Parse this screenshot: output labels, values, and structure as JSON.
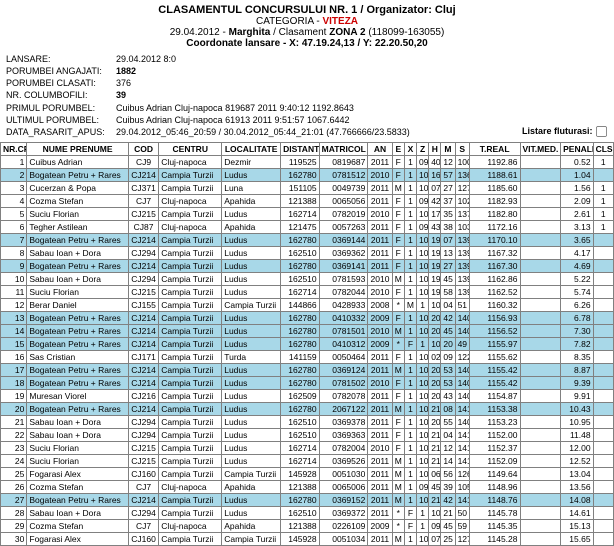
{
  "header": {
    "title_prefix": "CLASAMENTUL CONCURSULUI NR. 1 / Organizator: ",
    "organizer": "Cluj",
    "cat_prefix": "CATEGORIA - ",
    "category": "VITEZA",
    "date": "29.04.2012",
    "place": "Marghita",
    "zone_label": " / Clasament ",
    "zone": "ZONA 2",
    "zone_code": " (118099-163055)",
    "coord_label": "Coordonate lansare - X: 47.19.24,13 / Y: 22.20.50,20"
  },
  "meta": {
    "lansare_label": "LANSARE:",
    "lansare": "29.04.2012 8:0",
    "angajati_label": "PORUMBEI ANGAJATI:",
    "angajati": "1882",
    "clasati_label": "PORUMBEI CLASATI:",
    "clasati": "376",
    "columbofili_label": "NR. COLUMBOFILI:",
    "columbofili": "39",
    "primul_label": "PRIMUL PORUMBEL:",
    "primul": "Cuibus Adrian      Cluj-napoca      819687   2011   9:40:12   1192.8643",
    "ultimul_label": "ULTIMUL PORUMBEL:",
    "ultimul": "Cuibus Adrian      Cluj-napoca      61913    2011   9:51:57   1067.6442",
    "data_label": "DATA_RASARIT_APUS:",
    "data": "29.04.2012_05:46_20:59 / 30.04.2012_05:44_21:01 (47.766666/23.5833)",
    "listare_label": "Listare fluturasi:"
  },
  "columns": [
    "NR.CRT.",
    "NUME PRENUME",
    "COD",
    "CENTRU",
    "LOCALITATE",
    "DISTANTA",
    "MATRICOL",
    "AN",
    "E",
    "X",
    "Z",
    "H",
    "M",
    "S",
    "T.REAL",
    "VIT.MED.",
    "PENALIZ.",
    "CLS."
  ],
  "highlight_color": "#a8d8e8",
  "rows": [
    {
      "nr": 1,
      "nume": "Cuibus Adrian",
      "cod": "CJ9",
      "centru": "Cluj-napoca",
      "loc": "Dezmir",
      "dist": "119525",
      "mat": "0819687",
      "an": "2011",
      "e": "F",
      "x": "1",
      "z": "09",
      "h": "40",
      "m": "12",
      "s": "100.2000",
      "treal": "1192.86",
      "vit": "",
      "pen": "0.52",
      "cls": "1",
      "hl": false
    },
    {
      "nr": 2,
      "nume": "Bogatean Petru + Rares",
      "cod": "CJ214",
      "centru": "Campia Turzii",
      "loc": "Ludus",
      "dist": "162780",
      "mat": "0781512",
      "an": "2010",
      "e": "F",
      "x": "1",
      "z": "10",
      "h": "16",
      "m": "57",
      "s": "136.9500",
      "treal": "1188.61",
      "vit": "",
      "pen": "1.04",
      "cls": "",
      "hl": true
    },
    {
      "nr": 3,
      "nume": "Cucerzan & Popa",
      "cod": "CJ371",
      "centru": "Campia Turzii",
      "loc": "Luna",
      "dist": "151105",
      "mat": "0049739",
      "an": "2011",
      "e": "M",
      "x": "1",
      "z": "10",
      "h": "07",
      "m": "27",
      "s": "127.4500",
      "treal": "1185.60",
      "vit": "",
      "pen": "1.56",
      "cls": "1",
      "hl": false
    },
    {
      "nr": 4,
      "nume": "Cozma Stefan",
      "cod": "CJ7",
      "centru": "Cluj-napoca",
      "loc": "Apahida",
      "dist": "121388",
      "mat": "0065056",
      "an": "2011",
      "e": "F",
      "x": "1",
      "z": "09",
      "h": "42",
      "m": "37",
      "s": "102.6167",
      "treal": "1182.93",
      "vit": "",
      "pen": "2.09",
      "cls": "1",
      "hl": false
    },
    {
      "nr": 5,
      "nume": "Suciu Florian",
      "cod": "CJ215",
      "centru": "Campia Turzii",
      "loc": "Ludus",
      "dist": "162714",
      "mat": "0782019",
      "an": "2010",
      "e": "F",
      "x": "1",
      "z": "10",
      "h": "17",
      "m": "35",
      "s": "137.5833",
      "treal": "1182.80",
      "vit": "",
      "pen": "2.61",
      "cls": "1",
      "hl": false
    },
    {
      "nr": 6,
      "nume": "Tegher Astilean",
      "cod": "CJ87",
      "centru": "Cluj-napoca",
      "loc": "Apahida",
      "dist": "121475",
      "mat": "0057263",
      "an": "2011",
      "e": "F",
      "x": "1",
      "z": "09",
      "h": "43",
      "m": "38",
      "s": "103.6333",
      "treal": "1172.16",
      "vit": "",
      "pen": "3.13",
      "cls": "1",
      "hl": false
    },
    {
      "nr": 7,
      "nume": "Bogatean Petru + Rares",
      "cod": "CJ214",
      "centru": "Campia Turzii",
      "loc": "Ludus",
      "dist": "162780",
      "mat": "0369144",
      "an": "2011",
      "e": "F",
      "x": "1",
      "z": "10",
      "h": "19",
      "m": "07",
      "s": "139.1167",
      "treal": "1170.10",
      "vit": "",
      "pen": "3.65",
      "cls": "",
      "hl": true
    },
    {
      "nr": 8,
      "nume": "Sabau Ioan + Dora",
      "cod": "CJ294",
      "centru": "Campia Turzii",
      "loc": "Ludus",
      "dist": "162510",
      "mat": "0369362",
      "an": "2011",
      "e": "F",
      "x": "1",
      "z": "10",
      "h": "19",
      "m": "13",
      "s": "139.2167",
      "treal": "1167.32",
      "vit": "",
      "pen": "4.17",
      "cls": "",
      "hl": false
    },
    {
      "nr": 9,
      "nume": "Bogatean Petru + Rares",
      "cod": "CJ214",
      "centru": "Campia Turzii",
      "loc": "Ludus",
      "dist": "162780",
      "mat": "0369141",
      "an": "2011",
      "e": "F",
      "x": "1",
      "z": "10",
      "h": "19",
      "m": "27",
      "s": "139.4500",
      "treal": "1167.30",
      "vit": "",
      "pen": "4.69",
      "cls": "",
      "hl": true
    },
    {
      "nr": 10,
      "nume": "Sabau Ioan + Dora",
      "cod": "CJ294",
      "centru": "Campia Turzii",
      "loc": "Ludus",
      "dist": "162510",
      "mat": "0781593",
      "an": "2010",
      "e": "M",
      "x": "1",
      "z": "10",
      "h": "19",
      "m": "45",
      "s": "139.7500",
      "treal": "1162.86",
      "vit": "",
      "pen": "5.22",
      "cls": "",
      "hl": false
    },
    {
      "nr": 11,
      "nume": "Suciu Florian",
      "cod": "CJ215",
      "centru": "Campia Turzii",
      "loc": "Ludus",
      "dist": "162714",
      "mat": "0782044",
      "an": "2010",
      "e": "F",
      "x": "1",
      "z": "10",
      "h": "19",
      "m": "58",
      "s": "139.9667",
      "treal": "1162.52",
      "vit": "",
      "pen": "5.74",
      "cls": "",
      "hl": false
    },
    {
      "nr": 12,
      "nume": "Berar Daniel",
      "cod": "CJ155",
      "centru": "Campia Turzii",
      "loc": "Campia Turzii",
      "dist": "144866",
      "mat": "0428933",
      "an": "2008",
      "e": "*",
      "x": "M",
      "z": "1",
      "h": "10",
      "m": "04",
      "s": "51 124.8500",
      "treal": "1160.32",
      "vit": "",
      "pen": "6.26",
      "cls": "",
      "hl": false
    },
    {
      "nr": 13,
      "nume": "Bogatean Petru + Rares",
      "cod": "CJ214",
      "centru": "Campia Turzii",
      "loc": "Ludus",
      "dist": "162780",
      "mat": "0410332",
      "an": "2009",
      "e": "F",
      "x": "1",
      "z": "10",
      "h": "20",
      "m": "42",
      "s": "140.7000",
      "treal": "1156.93",
      "vit": "",
      "pen": "6.78",
      "cls": "",
      "hl": true
    },
    {
      "nr": 14,
      "nume": "Bogatean Petru + Rares",
      "cod": "CJ214",
      "centru": "Campia Turzii",
      "loc": "Ludus",
      "dist": "162780",
      "mat": "0781501",
      "an": "2010",
      "e": "M",
      "x": "1",
      "z": "10",
      "h": "20",
      "m": "45",
      "s": "140.7500",
      "treal": "1156.52",
      "vit": "",
      "pen": "7.30",
      "cls": "",
      "hl": true
    },
    {
      "nr": 15,
      "nume": "Bogatean Petru + Rares",
      "cod": "CJ214",
      "centru": "Campia Turzii",
      "loc": "Ludus",
      "dist": "162780",
      "mat": "0410312",
      "an": "2009",
      "e": "*",
      "x": "F",
      "z": "1",
      "h": "10",
      "m": "20",
      "s": "49 140.8167",
      "treal": "1155.97",
      "vit": "",
      "pen": "7.82",
      "cls": "",
      "hl": true
    },
    {
      "nr": 16,
      "nume": "Sas Cristian",
      "cod": "CJ171",
      "centru": "Campia Turzii",
      "loc": "Turda",
      "dist": "141159",
      "mat": "0050464",
      "an": "2011",
      "e": "F",
      "x": "1",
      "z": "10",
      "h": "02",
      "m": "09",
      "s": "122.1500",
      "treal": "1155.62",
      "vit": "",
      "pen": "8.35",
      "cls": "",
      "hl": false
    },
    {
      "nr": 17,
      "nume": "Bogatean Petru + Rares",
      "cod": "CJ214",
      "centru": "Campia Turzii",
      "loc": "Ludus",
      "dist": "162780",
      "mat": "0369124",
      "an": "2011",
      "e": "M",
      "x": "1",
      "z": "10",
      "h": "20",
      "m": "53",
      "s": "140.8833",
      "treal": "1155.42",
      "vit": "",
      "pen": "8.87",
      "cls": "",
      "hl": true
    },
    {
      "nr": 18,
      "nume": "Bogatean Petru + Rares",
      "cod": "CJ214",
      "centru": "Campia Turzii",
      "loc": "Ludus",
      "dist": "162780",
      "mat": "0781502",
      "an": "2010",
      "e": "F",
      "x": "1",
      "z": "10",
      "h": "20",
      "m": "53",
      "s": "140.8833",
      "treal": "1155.42",
      "vit": "",
      "pen": "9.39",
      "cls": "",
      "hl": true
    },
    {
      "nr": 19,
      "nume": "Muresan Viorel",
      "cod": "CJ216",
      "centru": "Campia Turzii",
      "loc": "Ludus",
      "dist": "162509",
      "mat": "0782078",
      "an": "2011",
      "e": "F",
      "x": "1",
      "z": "10",
      "h": "20",
      "m": "43",
      "s": "140.7167",
      "treal": "1154.87",
      "vit": "",
      "pen": "9.91",
      "cls": "",
      "hl": false
    },
    {
      "nr": 20,
      "nume": "Bogatean Petru + Rares",
      "cod": "CJ214",
      "centru": "Campia Turzii",
      "loc": "Ludus",
      "dist": "162780",
      "mat": "2067122",
      "an": "2011",
      "e": "M",
      "x": "1",
      "z": "10",
      "h": "21",
      "m": "08",
      "s": "141.1333",
      "treal": "1153.38",
      "vit": "",
      "pen": "10.43",
      "cls": "",
      "hl": true
    },
    {
      "nr": 21,
      "nume": "Sabau Ioan + Dora",
      "cod": "CJ294",
      "centru": "Campia Turzii",
      "loc": "Ludus",
      "dist": "162510",
      "mat": "0369378",
      "an": "2011",
      "e": "F",
      "x": "1",
      "z": "10",
      "h": "20",
      "m": "55",
      "s": "140.9167",
      "treal": "1153.23",
      "vit": "",
      "pen": "10.95",
      "cls": "",
      "hl": false
    },
    {
      "nr": 22,
      "nume": "Sabau Ioan + Dora",
      "cod": "CJ294",
      "centru": "Campia Turzii",
      "loc": "Ludus",
      "dist": "162510",
      "mat": "0369363",
      "an": "2011",
      "e": "F",
      "x": "1",
      "z": "10",
      "h": "21",
      "m": "04",
      "s": "141.0667",
      "treal": "1152.00",
      "vit": "",
      "pen": "11.48",
      "cls": "",
      "hl": false
    },
    {
      "nr": 23,
      "nume": "Suciu Florian",
      "cod": "CJ215",
      "centru": "Campia Turzii",
      "loc": "Ludus",
      "dist": "162714",
      "mat": "0782004",
      "an": "2010",
      "e": "F",
      "x": "1",
      "z": "10",
      "h": "21",
      "m": "12",
      "s": "141.2000",
      "treal": "1152.37",
      "vit": "",
      "pen": "12.00",
      "cls": "",
      "hl": false
    },
    {
      "nr": 24,
      "nume": "Suciu Florian",
      "cod": "CJ215",
      "centru": "Campia Turzii",
      "loc": "Ludus",
      "dist": "162714",
      "mat": "0369526",
      "an": "2011",
      "e": "M",
      "x": "1",
      "z": "10",
      "h": "21",
      "m": "14",
      "s": "141.2333",
      "treal": "1152.09",
      "vit": "",
      "pen": "12.52",
      "cls": "",
      "hl": false
    },
    {
      "nr": 25,
      "nume": "Fogarasi Alex",
      "cod": "CJ160",
      "centru": "Campia Turzii",
      "loc": "Campia Turzii",
      "dist": "145928",
      "mat": "0051030",
      "an": "2011",
      "e": "M",
      "x": "1",
      "z": "10",
      "h": "06",
      "m": "56",
      "s": "126.9333",
      "treal": "1149.64",
      "vit": "",
      "pen": "13.04",
      "cls": "",
      "hl": false
    },
    {
      "nr": 26,
      "nume": "Cozma Stefan",
      "cod": "CJ7",
      "centru": "Cluj-napoca",
      "loc": "Apahida",
      "dist": "121388",
      "mat": "0065006",
      "an": "2011",
      "e": "M",
      "x": "1",
      "z": "09",
      "h": "45",
      "m": "39",
      "s": "105.6500",
      "treal": "1148.96",
      "vit": "",
      "pen": "13.56",
      "cls": "",
      "hl": false
    },
    {
      "nr": 27,
      "nume": "Bogatean Petru + Rares",
      "cod": "CJ214",
      "centru": "Campia Turzii",
      "loc": "Ludus",
      "dist": "162780",
      "mat": "0369152",
      "an": "2011",
      "e": "M",
      "x": "1",
      "z": "10",
      "h": "21",
      "m": "42",
      "s": "141.7000",
      "treal": "1148.76",
      "vit": "",
      "pen": "14.08",
      "cls": "",
      "hl": true
    },
    {
      "nr": 28,
      "nume": "Sabau Ioan + Dora",
      "cod": "CJ294",
      "centru": "Campia Turzii",
      "loc": "Ludus",
      "dist": "162510",
      "mat": "0369372",
      "an": "2011",
      "e": "*",
      "x": "F",
      "z": "1",
      "h": "10",
      "m": "21",
      "s": "50 141.8333",
      "treal": "1145.78",
      "vit": "",
      "pen": "14.61",
      "cls": "",
      "hl": false
    },
    {
      "nr": 29,
      "nume": "Cozma Stefan",
      "cod": "CJ7",
      "centru": "Cluj-napoca",
      "loc": "Apahida",
      "dist": "121388",
      "mat": "0226109",
      "an": "2009",
      "e": "*",
      "x": "F",
      "z": "1",
      "h": "09",
      "m": "45",
      "s": "59 105.9833",
      "treal": "1145.35",
      "vit": "",
      "pen": "15.13",
      "cls": "",
      "hl": false
    },
    {
      "nr": 30,
      "nume": "Fogarasi Alex",
      "cod": "CJ160",
      "centru": "Campia Turzii",
      "loc": "Campia Turzii",
      "dist": "145928",
      "mat": "0051034",
      "an": "2011",
      "e": "M",
      "x": "1",
      "z": "10",
      "h": "07",
      "m": "25",
      "s": "127.4167",
      "treal": "1145.28",
      "vit": "",
      "pen": "15.65",
      "cls": "",
      "hl": false
    }
  ]
}
